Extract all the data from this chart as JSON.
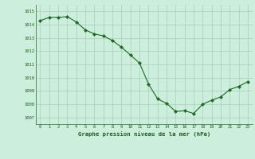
{
  "x": [
    0,
    1,
    2,
    3,
    4,
    5,
    6,
    7,
    8,
    9,
    10,
    11,
    12,
    13,
    14,
    15,
    16,
    17,
    18,
    19,
    20,
    21,
    22,
    23
  ],
  "y": [
    1014.3,
    1014.55,
    1014.55,
    1014.6,
    1014.2,
    1013.6,
    1013.3,
    1013.15,
    1012.8,
    1012.3,
    1011.7,
    1011.1,
    1009.5,
    1008.4,
    1008.05,
    1007.45,
    1007.5,
    1007.3,
    1008.0,
    1008.3,
    1008.55,
    1009.1,
    1009.35,
    1009.7
  ],
  "ylim": [
    1006.5,
    1015.5
  ],
  "yticks": [
    1007,
    1008,
    1009,
    1010,
    1011,
    1012,
    1013,
    1014,
    1015
  ],
  "xticks": [
    0,
    1,
    2,
    3,
    4,
    5,
    6,
    7,
    8,
    9,
    10,
    11,
    12,
    13,
    14,
    15,
    16,
    17,
    18,
    19,
    20,
    21,
    22,
    23
  ],
  "xlabel": "Graphe pression niveau de la mer (hPa)",
  "line_color": "#1a6b1a",
  "marker_color": "#1a6b1a",
  "bg_color": "#cceedd",
  "grid_color": "#aaccbb",
  "text_color": "#1a5c1a",
  "figsize": [
    3.2,
    2.0
  ],
  "dpi": 100
}
